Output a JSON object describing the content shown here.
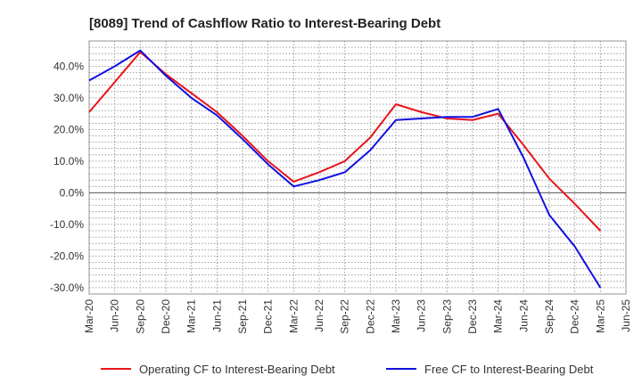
{
  "chart_data": {
    "type": "line",
    "title": "[8089]  Trend of Cashflow Ratio to Interest-Bearing Debt",
    "xlabel": "",
    "ylabel": "",
    "categories": [
      "Mar-20",
      "Jun-20",
      "Sep-20",
      "Dec-20",
      "Mar-21",
      "Jun-21",
      "Sep-21",
      "Dec-21",
      "Mar-22",
      "Jun-22",
      "Sep-22",
      "Dec-22",
      "Mar-23",
      "Jun-23",
      "Sep-23",
      "Dec-23",
      "Mar-24",
      "Jun-24",
      "Sep-24",
      "Dec-24",
      "Mar-25",
      "Jun-25"
    ],
    "ylim": [
      -32,
      48
    ],
    "yticks": [
      40,
      30,
      20,
      10,
      0,
      -10,
      -20,
      -30
    ],
    "ytick_labels": [
      "40.0%",
      "30.0%",
      "20.0%",
      "10.0%",
      "0.0%",
      "-10.0%",
      "-20.0%",
      "-30.0%"
    ],
    "grid": true,
    "legend_position": "bottom",
    "series": [
      {
        "name": "Operating CF to Interest-Bearing Debt",
        "color": "#e8141b",
        "values": [
          25.5,
          35,
          44.5,
          37.5,
          31.5,
          25.5,
          18,
          10,
          3.5,
          6.5,
          10,
          17.5,
          28,
          25.5,
          23.5,
          23,
          25,
          15,
          4.5,
          -3.5,
          -12,
          null
        ]
      },
      {
        "name": "Free CF to Interest-Bearing Debt",
        "color": "#1010e0",
        "values": [
          35.5,
          40,
          45,
          37,
          30,
          24.5,
          17,
          9,
          2,
          4,
          6.5,
          13.5,
          23,
          23.5,
          24,
          24,
          26.5,
          11,
          -7,
          -17,
          -30,
          null
        ]
      }
    ]
  }
}
